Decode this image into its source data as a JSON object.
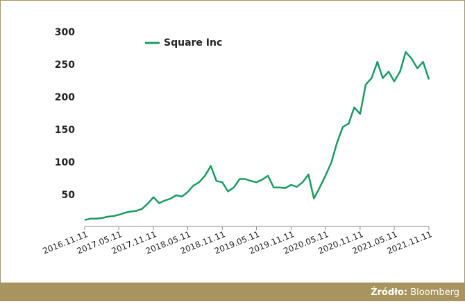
{
  "chart_data": {
    "type": "line",
    "x": [
      "2016.11.11",
      "2016.12.11",
      "2017.01.11",
      "2017.02.11",
      "2017.03.11",
      "2017.04.11",
      "2017.05.11",
      "2017.06.11",
      "2017.07.11",
      "2017.08.11",
      "2017.09.11",
      "2017.10.11",
      "2017.11.11",
      "2017.12.11",
      "2018.01.11",
      "2018.02.11",
      "2018.03.11",
      "2018.04.11",
      "2018.05.11",
      "2018.06.11",
      "2018.07.11",
      "2018.08.11",
      "2018.09.11",
      "2018.10.11",
      "2018.11.11",
      "2018.12.11",
      "2019.01.11",
      "2019.02.11",
      "2019.03.11",
      "2019.04.11",
      "2019.05.11",
      "2019.06.11",
      "2019.07.11",
      "2019.08.11",
      "2019.09.11",
      "2019.10.11",
      "2019.11.11",
      "2019.12.11",
      "2020.01.11",
      "2020.02.11",
      "2020.03.11",
      "2020.04.11",
      "2020.05.11",
      "2020.06.11",
      "2020.07.11",
      "2020.08.11",
      "2020.09.11",
      "2020.10.11",
      "2020.11.11",
      "2020.12.11",
      "2021.01.11",
      "2021.02.11",
      "2021.03.11",
      "2021.04.11",
      "2021.05.11",
      "2021.06.11",
      "2021.07.11",
      "2021.08.11",
      "2021.09.11",
      "2021.10.11",
      "2021.11.11"
    ],
    "series": [
      {
        "name": "Square Inc",
        "color": "#1a9a60",
        "values": [
          12,
          14,
          14,
          15,
          17,
          18,
          20,
          23,
          25,
          26,
          29,
          37,
          47,
          38,
          42,
          45,
          50,
          48,
          55,
          65,
          70,
          80,
          95,
          72,
          70,
          56,
          62,
          75,
          75,
          72,
          70,
          74,
          80,
          62,
          62,
          61,
          66,
          63,
          70,
          82,
          45,
          62,
          80,
          100,
          130,
          155,
          160,
          185,
          175,
          220,
          230,
          255,
          230,
          240,
          225,
          240,
          270,
          260,
          245,
          255,
          228
        ]
      }
    ],
    "xlim": [
      "2016.11.11",
      "2021.11.11"
    ],
    "xticks": [
      "2016.11.11",
      "2017.05.11",
      "2017.11.11",
      "2018.05.11",
      "2018.11.11",
      "2019.05.11",
      "2019.11.11",
      "2020.05.11",
      "2020.11.11",
      "2021.05.11",
      "2021.11.11"
    ],
    "ylim": [
      0,
      300
    ],
    "yticks": [
      50,
      100,
      150,
      200,
      250,
      300
    ],
    "legend": "top-left",
    "source_label": "Źródło:",
    "source": "Bloomberg"
  }
}
